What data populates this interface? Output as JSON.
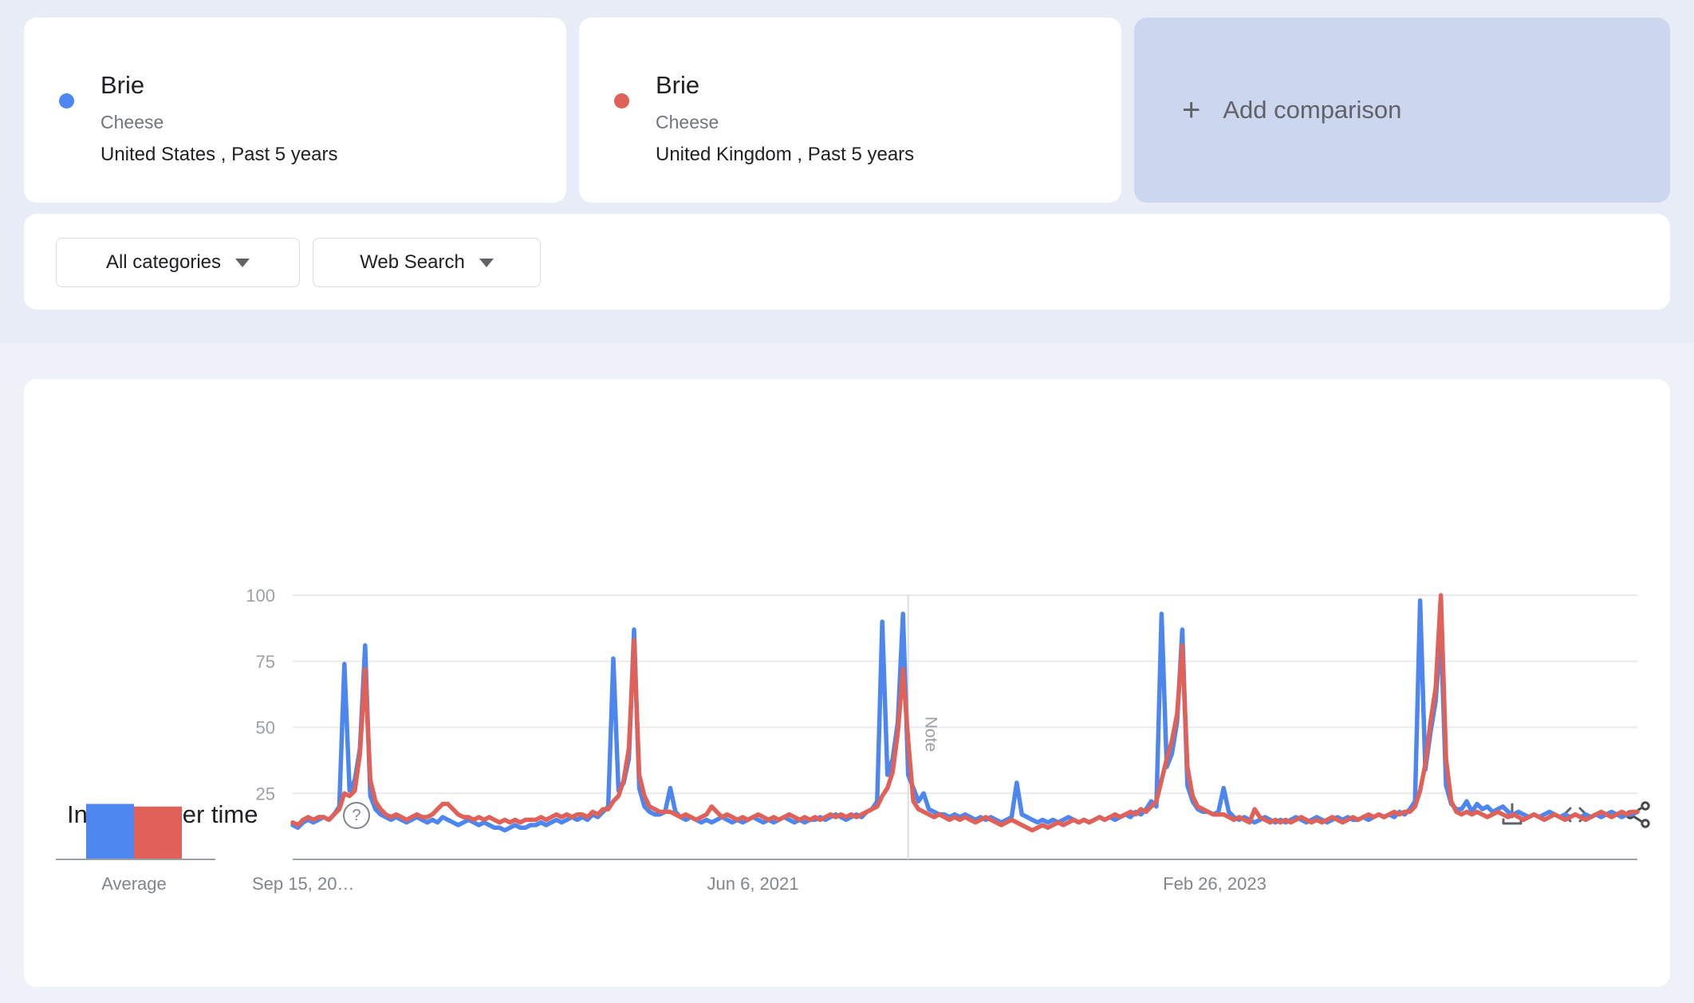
{
  "comparison_cards": [
    {
      "term": "Brie",
      "category": "Cheese",
      "scope": "United States , Past 5 years",
      "color": "#4d86ee"
    },
    {
      "term": "Brie",
      "category": "Cheese",
      "scope": "United Kingdom , Past 5 years",
      "color": "#e06158"
    }
  ],
  "add_comparison": {
    "plus_glyph": "+",
    "label": "Add comparison"
  },
  "filters": {
    "category": "All categories",
    "search_type": "Web Search"
  },
  "panel": {
    "title": "Interest over time",
    "help_glyph": "?"
  },
  "chart_data": {
    "type": "line",
    "title": "Interest over time",
    "x_axis_labels": [
      "Sep 15, 20…",
      "Jun 6, 2021",
      "Feb 26, 2023"
    ],
    "y_ticks": [
      25,
      50,
      75,
      100
    ],
    "ylim": [
      0,
      100
    ],
    "grid": true,
    "note_label": "Note",
    "note_week": 119,
    "weeks_total": 260,
    "average_label": "Average",
    "averages": [
      {
        "name": "Brie (United States)",
        "value": 21
      },
      {
        "name": "Brie (United Kingdom)",
        "value": 20
      }
    ],
    "series": [
      {
        "name": "Brie (United States)",
        "color": "#4d86ee",
        "values": [
          13,
          12,
          14,
          15,
          14,
          15,
          16,
          15,
          17,
          20,
          74,
          26,
          30,
          42,
          81,
          24,
          19,
          17,
          16,
          15,
          16,
          15,
          14,
          15,
          16,
          15,
          14,
          15,
          14,
          16,
          15,
          14,
          13,
          14,
          15,
          14,
          13,
          14,
          13,
          12,
          12,
          11,
          12,
          13,
          12,
          12,
          13,
          13,
          14,
          13,
          14,
          15,
          14,
          15,
          16,
          15,
          16,
          15,
          17,
          16,
          18,
          20,
          76,
          26,
          29,
          38,
          87,
          27,
          20,
          18,
          17,
          17,
          18,
          27,
          18,
          16,
          15,
          16,
          15,
          14,
          15,
          14,
          15,
          16,
          15,
          14,
          15,
          14,
          15,
          16,
          15,
          14,
          15,
          14,
          15,
          16,
          15,
          14,
          15,
          14,
          15,
          15,
          16,
          15,
          16,
          17,
          16,
          15,
          16,
          17,
          16,
          18,
          19,
          22,
          90,
          32,
          38,
          52,
          93,
          32,
          27,
          22,
          25,
          19,
          18,
          17,
          17,
          16,
          17,
          16,
          17,
          16,
          15,
          16,
          15,
          16,
          15,
          14,
          15,
          16,
          29,
          17,
          16,
          15,
          14,
          15,
          14,
          15,
          14,
          15,
          16,
          15,
          14,
          15,
          14,
          15,
          16,
          15,
          16,
          15,
          16,
          17,
          16,
          18,
          17,
          19,
          22,
          20,
          93,
          35,
          40,
          52,
          87,
          28,
          22,
          19,
          18,
          18,
          17,
          18,
          27,
          18,
          16,
          15,
          16,
          15,
          14,
          15,
          16,
          15,
          14,
          15,
          14,
          15,
          16,
          15,
          14,
          15,
          16,
          15,
          14,
          15,
          16,
          15,
          16,
          15,
          15,
          16,
          15,
          16,
          17,
          16,
          17,
          16,
          18,
          17,
          19,
          22,
          98,
          34,
          48,
          60,
          86,
          28,
          21,
          19,
          19,
          22,
          18,
          21,
          19,
          20,
          18,
          19,
          20,
          18,
          17,
          18,
          17,
          16,
          17,
          16,
          17,
          18,
          17,
          16,
          17,
          16,
          17,
          16,
          17,
          16,
          17,
          16,
          17,
          18,
          17,
          16,
          17,
          17,
          18
        ]
      },
      {
        "name": "Brie (United Kingdom)",
        "color": "#e06158",
        "values": [
          14,
          13,
          15,
          16,
          15,
          16,
          16,
          15,
          17,
          19,
          25,
          24,
          26,
          40,
          72,
          30,
          22,
          19,
          17,
          16,
          17,
          16,
          15,
          16,
          17,
          16,
          16,
          17,
          19,
          21,
          21,
          19,
          17,
          16,
          16,
          15,
          16,
          15,
          16,
          15,
          14,
          15,
          14,
          15,
          14,
          15,
          15,
          15,
          16,
          15,
          16,
          17,
          16,
          17,
          16,
          17,
          17,
          16,
          18,
          17,
          19,
          19,
          22,
          24,
          30,
          42,
          83,
          32,
          24,
          20,
          19,
          18,
          18,
          18,
          17,
          16,
          17,
          16,
          15,
          16,
          17,
          20,
          18,
          16,
          17,
          16,
          15,
          16,
          15,
          16,
          17,
          16,
          15,
          16,
          15,
          16,
          17,
          16,
          15,
          16,
          15,
          16,
          15,
          16,
          17,
          16,
          17,
          16,
          17,
          16,
          17,
          18,
          19,
          20,
          24,
          27,
          33,
          48,
          72,
          45,
          22,
          19,
          18,
          17,
          16,
          17,
          16,
          15,
          16,
          15,
          16,
          15,
          14,
          15,
          16,
          15,
          14,
          13,
          14,
          15,
          14,
          13,
          12,
          11,
          12,
          13,
          12,
          13,
          14,
          13,
          14,
          15,
          14,
          15,
          14,
          15,
          16,
          15,
          16,
          17,
          16,
          17,
          18,
          17,
          19,
          18,
          20,
          22,
          30,
          38,
          45,
          55,
          81,
          35,
          24,
          20,
          19,
          18,
          17,
          17,
          17,
          16,
          15,
          16,
          15,
          14,
          19,
          16,
          15,
          14,
          15,
          14,
          15,
          14,
          15,
          16,
          15,
          14,
          15,
          14,
          15,
          16,
          15,
          14,
          15,
          16,
          15,
          16,
          17,
          16,
          17,
          16,
          17,
          18,
          17,
          18,
          18,
          20,
          26,
          36,
          52,
          65,
          100,
          38,
          22,
          18,
          17,
          18,
          17,
          18,
          17,
          16,
          17,
          18,
          17,
          16,
          17,
          16,
          15,
          16,
          17,
          16,
          15,
          16,
          17,
          16,
          15,
          16,
          17,
          16,
          15,
          16,
          17,
          18,
          17,
          16,
          17,
          18,
          17,
          18,
          18
        ]
      }
    ]
  }
}
